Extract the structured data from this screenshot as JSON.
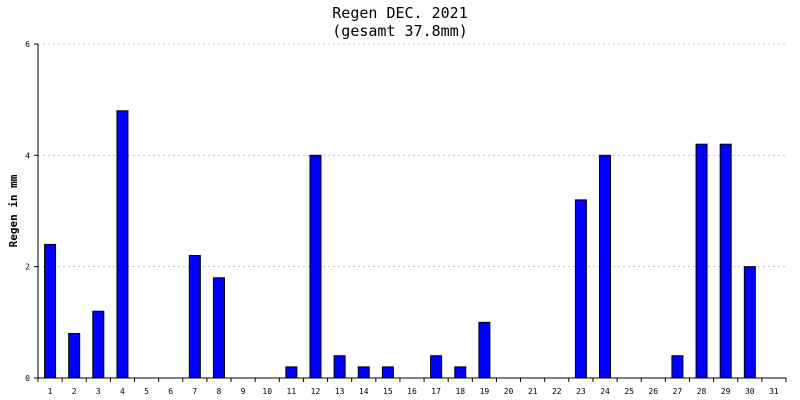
{
  "chart_data": {
    "type": "bar",
    "title": "Regen DEC. 2021",
    "subtitle": "(gesamt 37.8mm)",
    "xlabel": "",
    "ylabel": "Regen in mm",
    "categories": [
      "1",
      "2",
      "3",
      "4",
      "5",
      "6",
      "7",
      "8",
      "9",
      "10",
      "11",
      "12",
      "13",
      "14",
      "15",
      "16",
      "17",
      "18",
      "19",
      "20",
      "21",
      "22",
      "23",
      "24",
      "25",
      "26",
      "27",
      "28",
      "29",
      "30",
      "31"
    ],
    "values": [
      2.4,
      0.8,
      1.2,
      4.8,
      0,
      0,
      2.2,
      1.8,
      0,
      0,
      0.2,
      4.0,
      0.4,
      0.2,
      0.2,
      0,
      0.4,
      0.2,
      1.0,
      0,
      0,
      0,
      3.2,
      4.0,
      0,
      0,
      0.4,
      4.2,
      4.2,
      2.0,
      0
    ],
    "ylim": [
      0,
      6
    ],
    "yticks": [
      "0",
      "2",
      "4",
      "6"
    ],
    "grid": true,
    "bar_color": "#0000ff",
    "bar_outline_color": "#000000",
    "grid_color": "#c0c0c0"
  }
}
